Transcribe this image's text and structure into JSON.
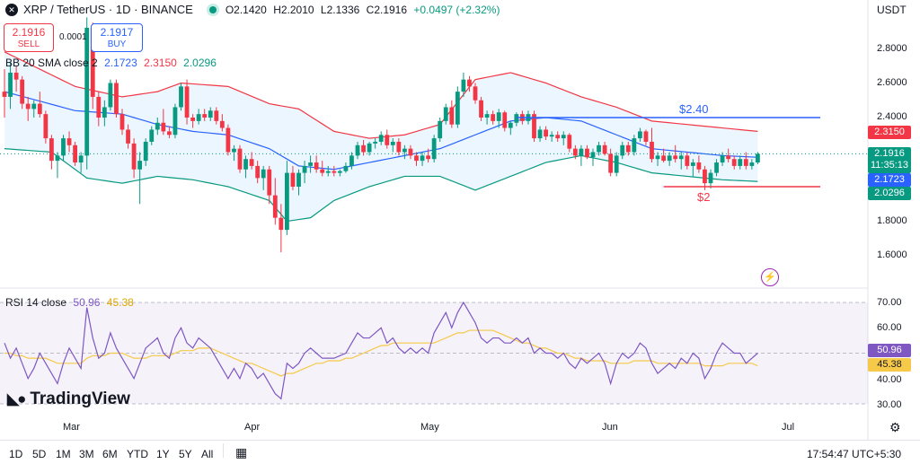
{
  "header": {
    "logo_glyph": "✕",
    "symbol": "XRP / TetherUS · 1D · BINANCE",
    "ohlc": {
      "open": "O2.1420",
      "high": "H2.2010",
      "low": "L2.1336",
      "close": "C2.1916",
      "change": "+0.0497 (+2.32%)"
    },
    "currency": "USDT"
  },
  "trade": {
    "sell_price": "2.1916",
    "sell_label": "SELL",
    "buy_price": "2.1917",
    "buy_label": "BUY",
    "spread": "0.0001"
  },
  "bb_legend": {
    "name": "BB 20 SMA close 2",
    "basis": "2.1723",
    "upper": "2.3150",
    "lower": "2.0296"
  },
  "rsi_legend": {
    "name": "RSI 14 close",
    "rsi": "50.96",
    "ma": "45.38"
  },
  "price_tags": {
    "upper": "2.3150",
    "last": "2.1916",
    "countdown": "11:35:13",
    "basis": "2.1723",
    "lower": "2.0296",
    "rsi": "50.96",
    "rsi_ma": "45.38"
  },
  "price_axis_ticks": [
    "2.8000",
    "2.6000",
    "2.4000",
    "1.8000",
    "1.6000"
  ],
  "rsi_axis_ticks": [
    "70.00",
    "60.00",
    "40.00",
    "30.00"
  ],
  "time_axis": [
    "Mar",
    "Apr",
    "May",
    "Jun",
    "Jul"
  ],
  "annotations": {
    "resistance_label": "$2.40",
    "support_label": "$2"
  },
  "branding": "TradingView",
  "toolbar": {
    "timeframes": [
      "1D",
      "5D",
      "1M",
      "3M",
      "6M",
      "YTD",
      "1Y",
      "5Y",
      "All"
    ],
    "calendar_icon": "calendar-icon",
    "clock": "17:54:47 UTC+5:30"
  },
  "colors": {
    "up": "#089981",
    "down": "#f23645",
    "basis": "#2962ff",
    "upper": "#f23645",
    "lower": "#089981",
    "band_fill": "#e3f2fd",
    "rsi": "#7e57c2",
    "rsi_ma": "#f7c948",
    "resistance": "#2962ff",
    "support": "#f23645"
  },
  "chart_data": {
    "type": "candlestick",
    "title": "XRP / TetherUS · 1D · BINANCE",
    "price_range": [
      1.5,
      3.0
    ],
    "rsi_range": [
      25,
      75
    ],
    "dates_month_starts": {
      "Mar": 14,
      "Apr": 45,
      "May": 75,
      "Jun": 106,
      "Jul": 136
    },
    "candles": [
      [
        2.55,
        2.68,
        2.4,
        2.52
      ],
      [
        2.52,
        2.72,
        2.45,
        2.66
      ],
      [
        2.66,
        2.7,
        2.55,
        2.62
      ],
      [
        2.62,
        2.64,
        2.45,
        2.48
      ],
      [
        2.48,
        2.52,
        2.38,
        2.45
      ],
      [
        2.45,
        2.5,
        2.4,
        2.48
      ],
      [
        2.48,
        2.55,
        2.4,
        2.42
      ],
      [
        2.42,
        2.44,
        2.25,
        2.28
      ],
      [
        2.28,
        2.3,
        2.1,
        2.15
      ],
      [
        2.15,
        2.2,
        2.05,
        2.18
      ],
      [
        2.18,
        2.3,
        2.15,
        2.28
      ],
      [
        2.28,
        2.32,
        2.2,
        2.24
      ],
      [
        2.24,
        2.26,
        2.12,
        2.14
      ],
      [
        2.14,
        2.2,
        2.08,
        2.18
      ],
      [
        2.18,
        2.98,
        2.1,
        2.92
      ],
      [
        2.92,
        2.95,
        2.45,
        2.52
      ],
      [
        2.52,
        2.55,
        2.35,
        2.4
      ],
      [
        2.4,
        2.5,
        2.35,
        2.46
      ],
      [
        2.46,
        2.62,
        2.44,
        2.6
      ],
      [
        2.6,
        2.62,
        2.4,
        2.42
      ],
      [
        2.42,
        2.45,
        2.3,
        2.33
      ],
      [
        2.33,
        2.36,
        2.22,
        2.25
      ],
      [
        2.25,
        2.28,
        2.05,
        2.1
      ],
      [
        2.1,
        2.2,
        1.9,
        2.15
      ],
      [
        2.15,
        2.28,
        2.12,
        2.26
      ],
      [
        2.26,
        2.35,
        2.24,
        2.33
      ],
      [
        2.33,
        2.4,
        2.3,
        2.37
      ],
      [
        2.37,
        2.45,
        2.3,
        2.32
      ],
      [
        2.32,
        2.35,
        2.28,
        2.3
      ],
      [
        2.3,
        2.48,
        2.28,
        2.46
      ],
      [
        2.46,
        2.6,
        2.44,
        2.58
      ],
      [
        2.58,
        2.62,
        2.36,
        2.4
      ],
      [
        2.4,
        2.42,
        2.34,
        2.38
      ],
      [
        2.38,
        2.45,
        2.36,
        2.42
      ],
      [
        2.42,
        2.45,
        2.38,
        2.4
      ],
      [
        2.4,
        2.46,
        2.38,
        2.44
      ],
      [
        2.44,
        2.46,
        2.36,
        2.38
      ],
      [
        2.38,
        2.42,
        2.32,
        2.34
      ],
      [
        2.34,
        2.36,
        2.18,
        2.2
      ],
      [
        2.2,
        2.24,
        2.15,
        2.22
      ],
      [
        2.22,
        2.24,
        2.08,
        2.1
      ],
      [
        2.1,
        2.18,
        2.05,
        2.16
      ],
      [
        2.16,
        2.2,
        2.1,
        2.12
      ],
      [
        2.12,
        2.15,
        2.02,
        2.05
      ],
      [
        2.05,
        2.12,
        1.98,
        2.1
      ],
      [
        2.1,
        2.12,
        1.9,
        1.95
      ],
      [
        1.95,
        2.05,
        1.78,
        1.82
      ],
      [
        1.82,
        1.9,
        1.62,
        1.75
      ],
      [
        1.75,
        2.15,
        1.72,
        2.08
      ],
      [
        2.08,
        2.12,
        1.98,
        2.0
      ],
      [
        2.0,
        2.1,
        1.95,
        2.08
      ],
      [
        2.08,
        2.15,
        2.02,
        2.12
      ],
      [
        2.12,
        2.18,
        2.08,
        2.14
      ],
      [
        2.14,
        2.18,
        2.08,
        2.1
      ],
      [
        2.1,
        2.15,
        2.06,
        2.08
      ],
      [
        2.08,
        2.12,
        2.06,
        2.09
      ],
      [
        2.09,
        2.12,
        2.06,
        2.08
      ],
      [
        2.08,
        2.1,
        2.06,
        2.09
      ],
      [
        2.09,
        2.14,
        2.08,
        2.12
      ],
      [
        2.12,
        2.2,
        2.1,
        2.18
      ],
      [
        2.18,
        2.26,
        2.16,
        2.24
      ],
      [
        2.24,
        2.27,
        2.18,
        2.2
      ],
      [
        2.2,
        2.26,
        2.18,
        2.25
      ],
      [
        2.25,
        2.28,
        2.22,
        2.26
      ],
      [
        2.26,
        2.32,
        2.24,
        2.3
      ],
      [
        2.3,
        2.33,
        2.22,
        2.24
      ],
      [
        2.24,
        2.28,
        2.2,
        2.26
      ],
      [
        2.26,
        2.28,
        2.18,
        2.2
      ],
      [
        2.2,
        2.24,
        2.16,
        2.22
      ],
      [
        2.22,
        2.24,
        2.16,
        2.18
      ],
      [
        2.18,
        2.2,
        2.12,
        2.15
      ],
      [
        2.15,
        2.2,
        2.12,
        2.18
      ],
      [
        2.18,
        2.22,
        2.14,
        2.16
      ],
      [
        2.16,
        2.3,
        2.14,
        2.28
      ],
      [
        2.28,
        2.4,
        2.26,
        2.38
      ],
      [
        2.38,
        2.48,
        2.36,
        2.46
      ],
      [
        2.46,
        2.5,
        2.34,
        2.36
      ],
      [
        2.36,
        2.58,
        2.34,
        2.55
      ],
      [
        2.55,
        2.66,
        2.52,
        2.62
      ],
      [
        2.62,
        2.64,
        2.55,
        2.58
      ],
      [
        2.58,
        2.6,
        2.48,
        2.5
      ],
      [
        2.5,
        2.52,
        2.38,
        2.4
      ],
      [
        2.4,
        2.44,
        2.36,
        2.42
      ],
      [
        2.42,
        2.44,
        2.36,
        2.38
      ],
      [
        2.38,
        2.45,
        2.34,
        2.43
      ],
      [
        2.43,
        2.44,
        2.32,
        2.34
      ],
      [
        2.34,
        2.38,
        2.3,
        2.37
      ],
      [
        2.37,
        2.43,
        2.35,
        2.42
      ],
      [
        2.42,
        2.44,
        2.36,
        2.38
      ],
      [
        2.38,
        2.44,
        2.36,
        2.42
      ],
      [
        2.42,
        2.44,
        2.26,
        2.28
      ],
      [
        2.28,
        2.35,
        2.26,
        2.33
      ],
      [
        2.33,
        2.35,
        2.27,
        2.29
      ],
      [
        2.29,
        2.32,
        2.26,
        2.3
      ],
      [
        2.3,
        2.32,
        2.26,
        2.28
      ],
      [
        2.28,
        2.32,
        2.24,
        2.3
      ],
      [
        2.3,
        2.31,
        2.2,
        2.22
      ],
      [
        2.22,
        2.24,
        2.16,
        2.18
      ],
      [
        2.18,
        2.24,
        2.12,
        2.22
      ],
      [
        2.22,
        2.24,
        2.16,
        2.17
      ],
      [
        2.17,
        2.22,
        2.12,
        2.2
      ],
      [
        2.2,
        2.26,
        2.18,
        2.24
      ],
      [
        2.24,
        2.26,
        2.18,
        2.19
      ],
      [
        2.19,
        2.22,
        2.06,
        2.08
      ],
      [
        2.08,
        2.2,
        2.06,
        2.18
      ],
      [
        2.18,
        2.26,
        2.16,
        2.24
      ],
      [
        2.24,
        2.26,
        2.18,
        2.2
      ],
      [
        2.2,
        2.3,
        2.18,
        2.28
      ],
      [
        2.28,
        2.34,
        2.26,
        2.32
      ],
      [
        2.32,
        2.33,
        2.24,
        2.26
      ],
      [
        2.26,
        2.34,
        2.14,
        2.16
      ],
      [
        2.16,
        2.2,
        2.12,
        2.18
      ],
      [
        2.18,
        2.22,
        2.14,
        2.15
      ],
      [
        2.15,
        2.2,
        2.12,
        2.18
      ],
      [
        2.18,
        2.24,
        2.14,
        2.16
      ],
      [
        2.16,
        2.2,
        2.1,
        2.18
      ],
      [
        2.18,
        2.2,
        2.1,
        2.12
      ],
      [
        2.12,
        2.16,
        2.06,
        2.14
      ],
      [
        2.14,
        2.18,
        2.08,
        2.1
      ],
      [
        2.1,
        2.12,
        1.98,
        2.02
      ],
      [
        2.02,
        2.1,
        1.99,
        2.08
      ],
      [
        2.08,
        2.16,
        2.06,
        2.14
      ],
      [
        2.14,
        2.2,
        2.12,
        2.18
      ],
      [
        2.18,
        2.22,
        2.14,
        2.16
      ],
      [
        2.16,
        2.18,
        2.1,
        2.12
      ],
      [
        2.12,
        2.18,
        2.1,
        2.16
      ],
      [
        2.16,
        2.2,
        2.1,
        2.12
      ],
      [
        2.12,
        2.16,
        2.1,
        2.14
      ],
      [
        2.14,
        2.2,
        2.13,
        2.19
      ]
    ],
    "resistance": {
      "value": 2.4,
      "label": "$2.40",
      "from_index": 87,
      "to_index": 131
    },
    "support": {
      "value": 2.0,
      "label": "$2",
      "from_index": 112,
      "to_index": 131
    },
    "bb_upper_anchors": [
      [
        0,
        2.78
      ],
      [
        12,
        2.58
      ],
      [
        20,
        2.52
      ],
      [
        26,
        2.55
      ],
      [
        30,
        2.6
      ],
      [
        38,
        2.58
      ],
      [
        45,
        2.48
      ],
      [
        50,
        2.45
      ],
      [
        56,
        2.32
      ],
      [
        62,
        2.28
      ],
      [
        68,
        2.3
      ],
      [
        74,
        2.36
      ],
      [
        80,
        2.62
      ],
      [
        86,
        2.66
      ],
      [
        92,
        2.6
      ],
      [
        98,
        2.52
      ],
      [
        104,
        2.46
      ],
      [
        110,
        2.38
      ],
      [
        116,
        2.36
      ],
      [
        122,
        2.34
      ],
      [
        128,
        2.32
      ]
    ],
    "bb_basis_anchors": [
      [
        0,
        2.55
      ],
      [
        12,
        2.44
      ],
      [
        20,
        2.42
      ],
      [
        26,
        2.36
      ],
      [
        32,
        2.32
      ],
      [
        38,
        2.3
      ],
      [
        45,
        2.22
      ],
      [
        50,
        2.12
      ],
      [
        56,
        2.1
      ],
      [
        62,
        2.14
      ],
      [
        68,
        2.18
      ],
      [
        74,
        2.22
      ],
      [
        80,
        2.3
      ],
      [
        86,
        2.38
      ],
      [
        92,
        2.4
      ],
      [
        98,
        2.38
      ],
      [
        104,
        2.3
      ],
      [
        110,
        2.22
      ],
      [
        116,
        2.2
      ],
      [
        122,
        2.18
      ],
      [
        128,
        2.17
      ]
    ],
    "bb_lower_anchors": [
      [
        0,
        2.22
      ],
      [
        8,
        2.2
      ],
      [
        14,
        2.05
      ],
      [
        20,
        2.02
      ],
      [
        26,
        2.06
      ],
      [
        32,
        2.04
      ],
      [
        38,
        2.0
      ],
      [
        45,
        1.92
      ],
      [
        48,
        1.8
      ],
      [
        52,
        1.82
      ],
      [
        56,
        1.92
      ],
      [
        62,
        2.0
      ],
      [
        68,
        2.06
      ],
      [
        74,
        2.06
      ],
      [
        80,
        1.98
      ],
      [
        86,
        2.06
      ],
      [
        92,
        2.14
      ],
      [
        98,
        2.18
      ],
      [
        104,
        2.14
      ],
      [
        110,
        2.08
      ],
      [
        116,
        2.06
      ],
      [
        122,
        2.04
      ],
      [
        128,
        2.03
      ]
    ],
    "rsi_values": [
      54,
      48,
      52,
      46,
      40,
      44,
      50,
      46,
      42,
      38,
      46,
      52,
      48,
      44,
      68,
      56,
      48,
      50,
      58,
      52,
      48,
      44,
      40,
      46,
      52,
      54,
      56,
      50,
      48,
      56,
      60,
      54,
      52,
      56,
      54,
      52,
      48,
      44,
      40,
      44,
      40,
      46,
      44,
      40,
      42,
      38,
      34,
      32,
      46,
      44,
      46,
      50,
      52,
      50,
      48,
      48,
      48,
      49,
      50,
      54,
      58,
      56,
      56,
      58,
      60,
      54,
      56,
      52,
      50,
      52,
      50,
      52,
      50,
      58,
      62,
      66,
      60,
      66,
      70,
      66,
      62,
      56,
      54,
      56,
      56,
      54,
      54,
      56,
      54,
      56,
      50,
      52,
      50,
      50,
      48,
      50,
      46,
      44,
      48,
      46,
      48,
      50,
      46,
      38,
      46,
      50,
      48,
      50,
      54,
      52,
      46,
      42,
      44,
      46,
      44,
      48,
      46,
      50,
      48,
      40,
      44,
      50,
      54,
      52,
      50,
      50,
      46,
      48,
      50
    ],
    "rsi_ma_values": [
      50,
      50,
      49,
      49,
      48,
      48,
      48,
      48,
      47,
      46,
      46,
      46,
      46,
      46,
      48,
      49,
      49,
      49,
      50,
      50,
      50,
      49,
      48,
      48,
      48,
      49,
      49,
      49,
      49,
      50,
      51,
      51,
      51,
      52,
      52,
      52,
      51,
      50,
      49,
      48,
      47,
      46,
      46,
      45,
      44,
      43,
      42,
      41,
      42,
      42,
      43,
      44,
      45,
      46,
      46,
      47,
      47,
      47,
      48,
      48,
      49,
      50,
      51,
      52,
      53,
      53,
      54,
      54,
      54,
      54,
      54,
      54,
      54,
      54,
      55,
      56,
      57,
      58,
      58,
      59,
      59,
      59,
      59,
      59,
      58,
      57,
      56,
      55,
      54,
      54,
      53,
      52,
      52,
      51,
      50,
      50,
      49,
      48,
      48,
      47,
      47,
      47,
      47,
      46,
      46,
      46,
      46,
      47,
      47,
      47,
      47,
      46,
      46,
      46,
      46,
      46,
      46,
      46,
      46,
      45,
      45,
      45,
      45,
      46,
      46,
      46,
      46,
      46,
      45
    ]
  }
}
